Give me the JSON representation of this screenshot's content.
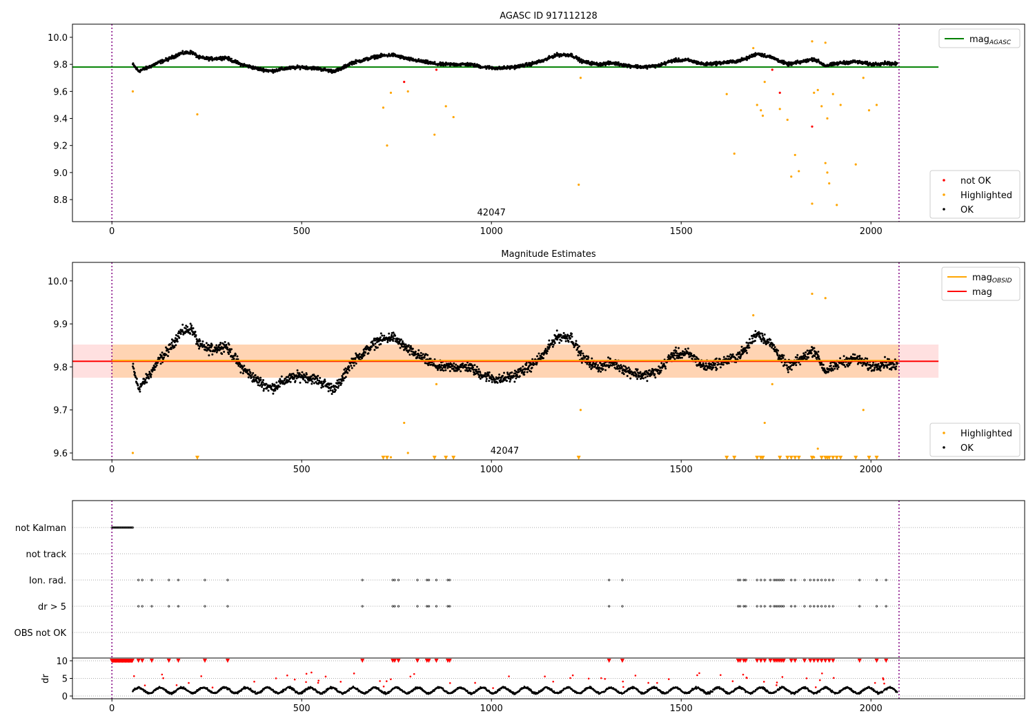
{
  "chart_data": [
    {
      "type": "scatter",
      "title": "AGASC ID 917112128",
      "annotation": "42047",
      "xlim": [
        -104,
        2405
      ],
      "ylim": [
        8.637,
        10.097
      ],
      "xticks": [
        0,
        500,
        1000,
        1500,
        2000
      ],
      "yticks": [
        8.8,
        9.0,
        9.2,
        9.4,
        9.6,
        9.8,
        10.0
      ],
      "legend_lines": [
        {
          "label": "mag",
          "sub": "AGASC",
          "color": "#008000"
        }
      ],
      "legend_points": [
        {
          "label": "not OK",
          "color": "#ff0000"
        },
        {
          "label": "Highlighted",
          "color": "#ffa500"
        },
        {
          "label": "OK",
          "color": "#000000"
        }
      ],
      "mag_agasc": 9.78,
      "vlines": [
        0,
        2074
      ]
    },
    {
      "type": "scatter",
      "title": "Magnitude Estimates",
      "annotation": "42047",
      "xlim": [
        -104,
        2405
      ],
      "ylim": [
        9.584,
        10.043
      ],
      "xticks": [
        0,
        500,
        1000,
        1500,
        2000
      ],
      "yticks": [
        9.6,
        9.7,
        9.8,
        9.9,
        10.0
      ],
      "legend_lines": [
        {
          "label": "mag",
          "sub": "OBSID",
          "color": "#ffa500"
        },
        {
          "label": "mag",
          "sub": "",
          "color": "#ff0000"
        }
      ],
      "legend_points": [
        {
          "label": "Highlighted",
          "color": "#ffa500"
        },
        {
          "label": "OK",
          "color": "#000000"
        }
      ],
      "mag": 9.813,
      "mag_band": [
        9.775,
        9.852
      ],
      "mag_obsid": 9.813
    },
    {
      "type": "scatter",
      "categories": [
        "not Kalman",
        "not track",
        "Ion. rad.",
        "dr > 5",
        "OBS not OK"
      ],
      "xlim": [
        -104,
        2405
      ],
      "xticks": [
        0,
        500,
        1000,
        1500,
        2000
      ],
      "dr_ylabel": "dr",
      "dr_yticks": [
        0,
        5,
        10
      ],
      "dr_ylim": [
        -0.78,
        10.78
      ]
    }
  ],
  "series": {
    "ok_trend": [
      [
        55,
        9.8
      ],
      [
        70,
        9.75
      ],
      [
        90,
        9.77
      ],
      [
        120,
        9.81
      ],
      [
        150,
        9.84
      ],
      [
        180,
        9.88
      ],
      [
        210,
        9.89
      ],
      [
        230,
        9.85
      ],
      [
        260,
        9.84
      ],
      [
        300,
        9.85
      ],
      [
        340,
        9.8
      ],
      [
        380,
        9.77
      ],
      [
        420,
        9.75
      ],
      [
        460,
        9.77
      ],
      [
        500,
        9.78
      ],
      [
        540,
        9.77
      ],
      [
        580,
        9.75
      ],
      [
        600,
        9.76
      ],
      [
        630,
        9.81
      ],
      [
        660,
        9.83
      ],
      [
        700,
        9.86
      ],
      [
        740,
        9.87
      ],
      [
        780,
        9.84
      ],
      [
        820,
        9.82
      ],
      [
        860,
        9.8
      ],
      [
        900,
        9.8
      ],
      [
        940,
        9.8
      ],
      [
        980,
        9.78
      ],
      [
        1020,
        9.77
      ],
      [
        1060,
        9.78
      ],
      [
        1100,
        9.8
      ],
      [
        1140,
        9.83
      ],
      [
        1170,
        9.87
      ],
      [
        1210,
        9.87
      ],
      [
        1240,
        9.82
      ],
      [
        1280,
        9.8
      ],
      [
        1320,
        9.81
      ],
      [
        1360,
        9.79
      ],
      [
        1400,
        9.78
      ],
      [
        1440,
        9.79
      ],
      [
        1480,
        9.83
      ],
      [
        1520,
        9.83
      ],
      [
        1560,
        9.8
      ],
      [
        1600,
        9.81
      ],
      [
        1640,
        9.82
      ],
      [
        1670,
        9.84
      ],
      [
        1700,
        9.88
      ],
      [
        1740,
        9.85
      ],
      [
        1780,
        9.8
      ],
      [
        1820,
        9.82
      ],
      [
        1850,
        9.84
      ],
      [
        1880,
        9.79
      ],
      [
        1920,
        9.81
      ],
      [
        1960,
        9.82
      ],
      [
        2000,
        9.8
      ],
      [
        2040,
        9.81
      ],
      [
        2070,
        9.8
      ]
    ],
    "highlighted": [
      [
        55,
        9.6
      ],
      [
        225,
        9.43
      ],
      [
        715,
        9.48
      ],
      [
        725,
        9.2
      ],
      [
        735,
        9.59
      ],
      [
        780,
        9.6
      ],
      [
        850,
        9.28
      ],
      [
        880,
        9.49
      ],
      [
        900,
        9.41
      ],
      [
        1230,
        8.91
      ],
      [
        1235,
        9.7
      ],
      [
        1620,
        9.58
      ],
      [
        1640,
        9.14
      ],
      [
        1690,
        9.92
      ],
      [
        1700,
        9.5
      ],
      [
        1710,
        9.46
      ],
      [
        1715,
        9.42
      ],
      [
        1720,
        9.67
      ],
      [
        1760,
        9.47
      ],
      [
        1780,
        9.39
      ],
      [
        1790,
        8.97
      ],
      [
        1800,
        9.13
      ],
      [
        1810,
        9.01
      ],
      [
        1845,
        8.77
      ],
      [
        1845,
        9.97
      ],
      [
        1850,
        9.59
      ],
      [
        1860,
        9.61
      ],
      [
        1870,
        9.49
      ],
      [
        1880,
        9.07
      ],
      [
        1880,
        9.96
      ],
      [
        1885,
        9.0
      ],
      [
        1885,
        9.4
      ],
      [
        1890,
        8.92
      ],
      [
        1900,
        9.58
      ],
      [
        1910,
        8.76
      ],
      [
        1920,
        9.5
      ],
      [
        1960,
        9.06
      ],
      [
        1980,
        9.7
      ],
      [
        1995,
        9.46
      ],
      [
        2015,
        9.5
      ]
    ],
    "not_ok": [
      [
        770,
        9.67
      ],
      [
        855,
        9.76
      ],
      [
        1740,
        9.76
      ],
      [
        1760,
        9.59
      ],
      [
        1845,
        9.34
      ]
    ],
    "flag_x": [
      70,
      80,
      105,
      150,
      175,
      245,
      305,
      660,
      740,
      745,
      755,
      805,
      830,
      835,
      855,
      885,
      890,
      1310,
      1345,
      1650,
      1655,
      1665,
      1670,
      1700,
      1710,
      1720,
      1735,
      1745,
      1750,
      1755,
      1760,
      1765,
      1770,
      1790,
      1800,
      1825,
      1840,
      1850,
      1860,
      1870,
      1880,
      1890,
      1900,
      1970,
      2015,
      2040
    ],
    "not_kalman_range": [
      0,
      55
    ]
  }
}
